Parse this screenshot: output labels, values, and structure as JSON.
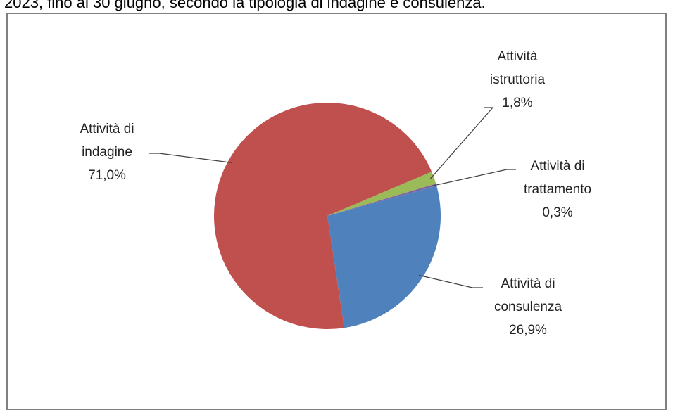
{
  "caption": "2023, fino al 30 giugno, secondo la tipologia di indagine e consulenza.",
  "chart_data": {
    "type": "pie",
    "title": "",
    "slices": [
      {
        "label_lines": [
          "Attività",
          "istruttoria",
          "1,8%"
        ],
        "value": 1.8,
        "color": "#9BBB59"
      },
      {
        "label_lines": [
          "Attività di",
          "trattamento",
          "0,3%"
        ],
        "value": 0.3,
        "color": "#8064A2"
      },
      {
        "label_lines": [
          "Attività di",
          "consulenza",
          "26,9%"
        ],
        "value": 26.9,
        "color": "#4F81BD"
      },
      {
        "label_lines": [
          "Attività di",
          "indagine",
          "71,0%"
        ],
        "value": 71.0,
        "color": "#C0504D"
      }
    ],
    "start_angle_deg": 67,
    "legend": "none",
    "labels": "outside with leader lines"
  }
}
